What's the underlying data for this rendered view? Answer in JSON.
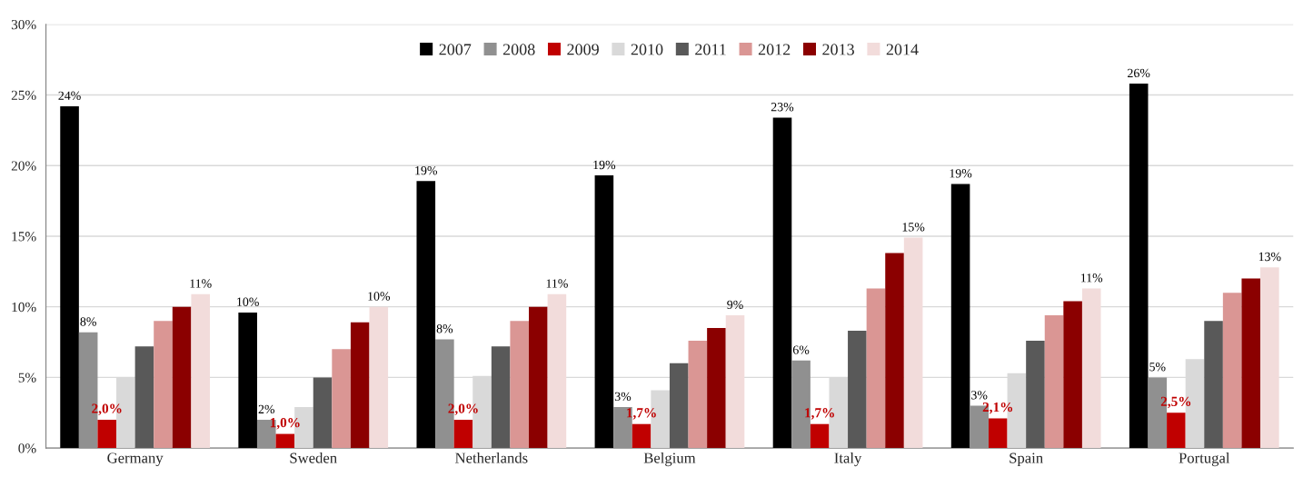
{
  "chart_data": {
    "type": "bar",
    "categories": [
      "Germany",
      "Sweden",
      "Netherlands",
      "Belgium",
      "Italy",
      "Spain",
      "Portugal"
    ],
    "series": [
      {
        "name": "2007",
        "color": "#000000",
        "values": [
          24.2,
          9.6,
          18.9,
          19.3,
          23.4,
          18.7,
          25.8
        ],
        "value_labels": [
          "24%",
          "10%",
          "19%",
          "19%",
          "23%",
          "19%",
          "26%"
        ]
      },
      {
        "name": "2008",
        "color": "#909090",
        "values": [
          8.2,
          2.0,
          7.7,
          2.9,
          6.2,
          3.0,
          5.0
        ],
        "value_labels": [
          "8%",
          "2%",
          "8%",
          "3%",
          "6%",
          "3%",
          "5%"
        ]
      },
      {
        "name": "2009",
        "color": "#c00000",
        "values": [
          2.0,
          1.0,
          2.0,
          1.7,
          1.7,
          2.1,
          2.5
        ],
        "value_labels": [
          "2,0%",
          "1,0%",
          "2,0%",
          "1,7%",
          "1,7%",
          "2,1%",
          "2,5%"
        ]
      },
      {
        "name": "2010",
        "color": "#d9d9d9",
        "values": [
          5.0,
          2.9,
          5.1,
          4.1,
          5.0,
          5.3,
          6.3
        ]
      },
      {
        "name": "2011",
        "color": "#595959",
        "values": [
          7.2,
          5.0,
          7.2,
          6.0,
          8.3,
          7.6,
          9.0
        ]
      },
      {
        "name": "2012",
        "color": "#da9694",
        "values": [
          9.0,
          7.0,
          9.0,
          7.6,
          11.3,
          9.4,
          11.0
        ]
      },
      {
        "name": "2013",
        "color": "#8b0000",
        "values": [
          10.0,
          8.9,
          10.0,
          8.5,
          13.8,
          10.4,
          12.0
        ]
      },
      {
        "name": "2014",
        "color": "#f2dcdb",
        "values": [
          10.9,
          10.0,
          10.9,
          9.4,
          14.9,
          11.3,
          12.8
        ],
        "value_labels": [
          "11%",
          "10%",
          "11%",
          "9%",
          "15%",
          "11%",
          "13%"
        ]
      }
    ],
    "ylim": [
      0,
      30
    ],
    "yticks": [
      {
        "value": 0,
        "label": "0%"
      },
      {
        "value": 5,
        "label": "5%"
      },
      {
        "value": 10,
        "label": "10%"
      },
      {
        "value": 15,
        "label": "15%"
      },
      {
        "value": 20,
        "label": "20%"
      },
      {
        "value": 25,
        "label": "25%"
      },
      {
        "value": 30,
        "label": "30%"
      }
    ],
    "grid": "y",
    "legend": "top"
  }
}
